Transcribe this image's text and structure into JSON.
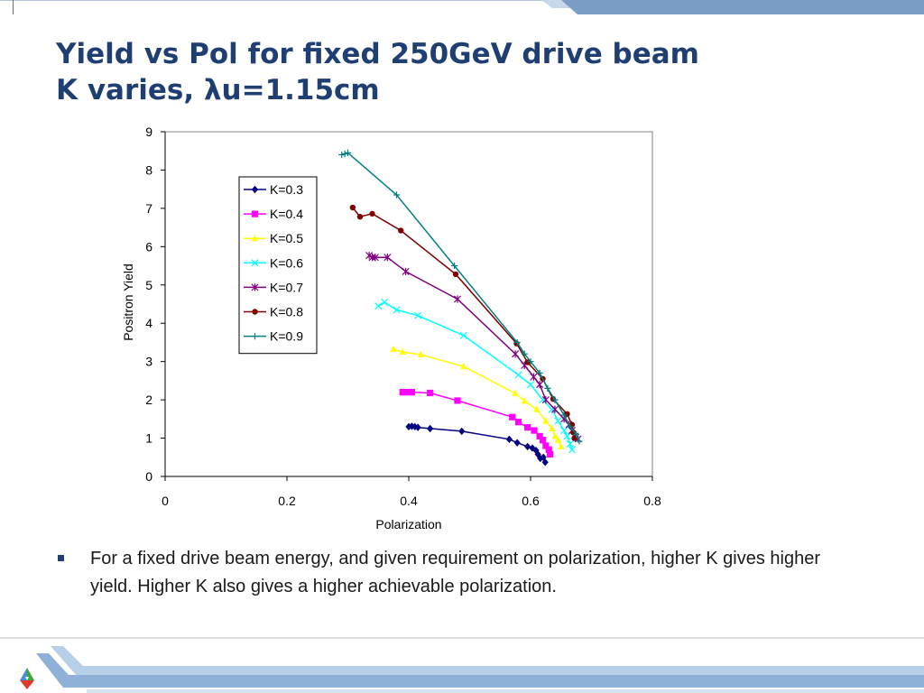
{
  "slide": {
    "title_line1": "Yield vs Pol for fixed 250GeV drive beam",
    "title_line2_prefix": "K varies, ",
    "title_line2_lambda": "λ",
    "title_line2_suffix": "u=1.15cm",
    "bullet": "For a fixed drive beam energy, and given requirement on polarization, higher K gives higher yield.  Higher K also gives a higher achievable polarization."
  },
  "colors": {
    "title": "#1f3f73",
    "band_light": "#c3d5ea",
    "band_dark": "#7c9ec6"
  },
  "chart_data": {
    "type": "line",
    "xlabel": "Polarization",
    "ylabel": "Positron Yield",
    "xlim": [
      0,
      0.8
    ],
    "ylim": [
      0,
      9
    ],
    "xticks": [
      0,
      0.2,
      0.4,
      0.6,
      0.8
    ],
    "xtick_labels": [
      "0",
      "0.2",
      "0.4",
      "0.6",
      "0.8"
    ],
    "yticks": [
      0,
      1,
      2,
      3,
      4,
      5,
      6,
      7,
      8,
      9
    ],
    "ytick_labels": [
      "0",
      "1",
      "2",
      "3",
      "4",
      "5",
      "6",
      "7",
      "8",
      "9"
    ],
    "grid": false,
    "legend_position": "upper-left inside",
    "series": [
      {
        "name": "K=0.3",
        "color": "#000080",
        "marker": "diamond",
        "x": [
          0.4,
          0.405,
          0.41,
          0.415,
          0.435,
          0.487,
          0.565,
          0.578,
          0.595,
          0.603,
          0.609,
          0.612,
          0.616,
          0.621,
          0.624
        ],
        "y": [
          1.3,
          1.31,
          1.3,
          1.28,
          1.25,
          1.18,
          0.97,
          0.88,
          0.78,
          0.74,
          0.68,
          0.58,
          0.47,
          0.5,
          0.37
        ]
      },
      {
        "name": "K=0.4",
        "color": "#ff00ff",
        "marker": "square",
        "x": [
          0.39,
          0.395,
          0.4,
          0.405,
          0.435,
          0.48,
          0.57,
          0.58,
          0.595,
          0.606,
          0.615,
          0.62,
          0.625,
          0.63,
          0.632
        ],
        "y": [
          2.2,
          2.2,
          2.2,
          2.2,
          2.18,
          1.98,
          1.55,
          1.42,
          1.28,
          1.2,
          1.05,
          0.95,
          0.8,
          0.7,
          0.58
        ]
      },
      {
        "name": "K=0.5",
        "color": "#ffff00",
        "marker": "triangle",
        "x": [
          0.375,
          0.39,
          0.42,
          0.49,
          0.575,
          0.59,
          0.61,
          0.625,
          0.635,
          0.64,
          0.645,
          0.65
        ],
        "y": [
          3.32,
          3.25,
          3.18,
          2.87,
          2.17,
          1.97,
          1.75,
          1.45,
          1.25,
          1.05,
          0.95,
          0.78
        ]
      },
      {
        "name": "K=0.6",
        "color": "#00ffff",
        "marker": "x",
        "x": [
          0.35,
          0.36,
          0.38,
          0.415,
          0.49,
          0.58,
          0.6,
          0.62,
          0.635,
          0.645,
          0.655,
          0.66,
          0.665,
          0.668
        ],
        "y": [
          4.45,
          4.55,
          4.35,
          4.2,
          3.68,
          2.65,
          2.4,
          2.0,
          1.75,
          1.45,
          1.2,
          1.05,
          0.85,
          0.7
        ]
      },
      {
        "name": "K=0.7",
        "color": "#800080",
        "marker": "star",
        "x": [
          0.335,
          0.34,
          0.345,
          0.365,
          0.395,
          0.48,
          0.575,
          0.59,
          0.605,
          0.615,
          0.625,
          0.64,
          0.655,
          0.663,
          0.668,
          0.673,
          0.678
        ],
        "y": [
          5.77,
          5.72,
          5.72,
          5.72,
          5.35,
          4.63,
          3.2,
          2.9,
          2.6,
          2.4,
          2.0,
          1.75,
          1.5,
          1.35,
          1.2,
          1.05,
          0.98
        ]
      },
      {
        "name": "K=0.8",
        "color": "#800000",
        "marker": "circle",
        "x": [
          0.308,
          0.32,
          0.34,
          0.387,
          0.477,
          0.577,
          0.595,
          0.62,
          0.637,
          0.66,
          0.668,
          0.67,
          0.672
        ],
        "y": [
          7.02,
          6.78,
          6.86,
          6.42,
          5.28,
          3.47,
          2.98,
          2.55,
          2.02,
          1.63,
          1.35,
          1.15,
          1.0
        ]
      },
      {
        "name": "K=0.9",
        "color": "#008080",
        "marker": "plus",
        "x": [
          0.29,
          0.295,
          0.3,
          0.38,
          0.475,
          0.578,
          0.59,
          0.6,
          0.615,
          0.628,
          0.64,
          0.655,
          0.665,
          0.675,
          0.68
        ],
        "y": [
          8.4,
          8.42,
          8.45,
          7.35,
          5.5,
          3.5,
          3.2,
          3.0,
          2.7,
          2.3,
          2.0,
          1.6,
          1.3,
          1.1,
          0.92
        ]
      }
    ]
  }
}
